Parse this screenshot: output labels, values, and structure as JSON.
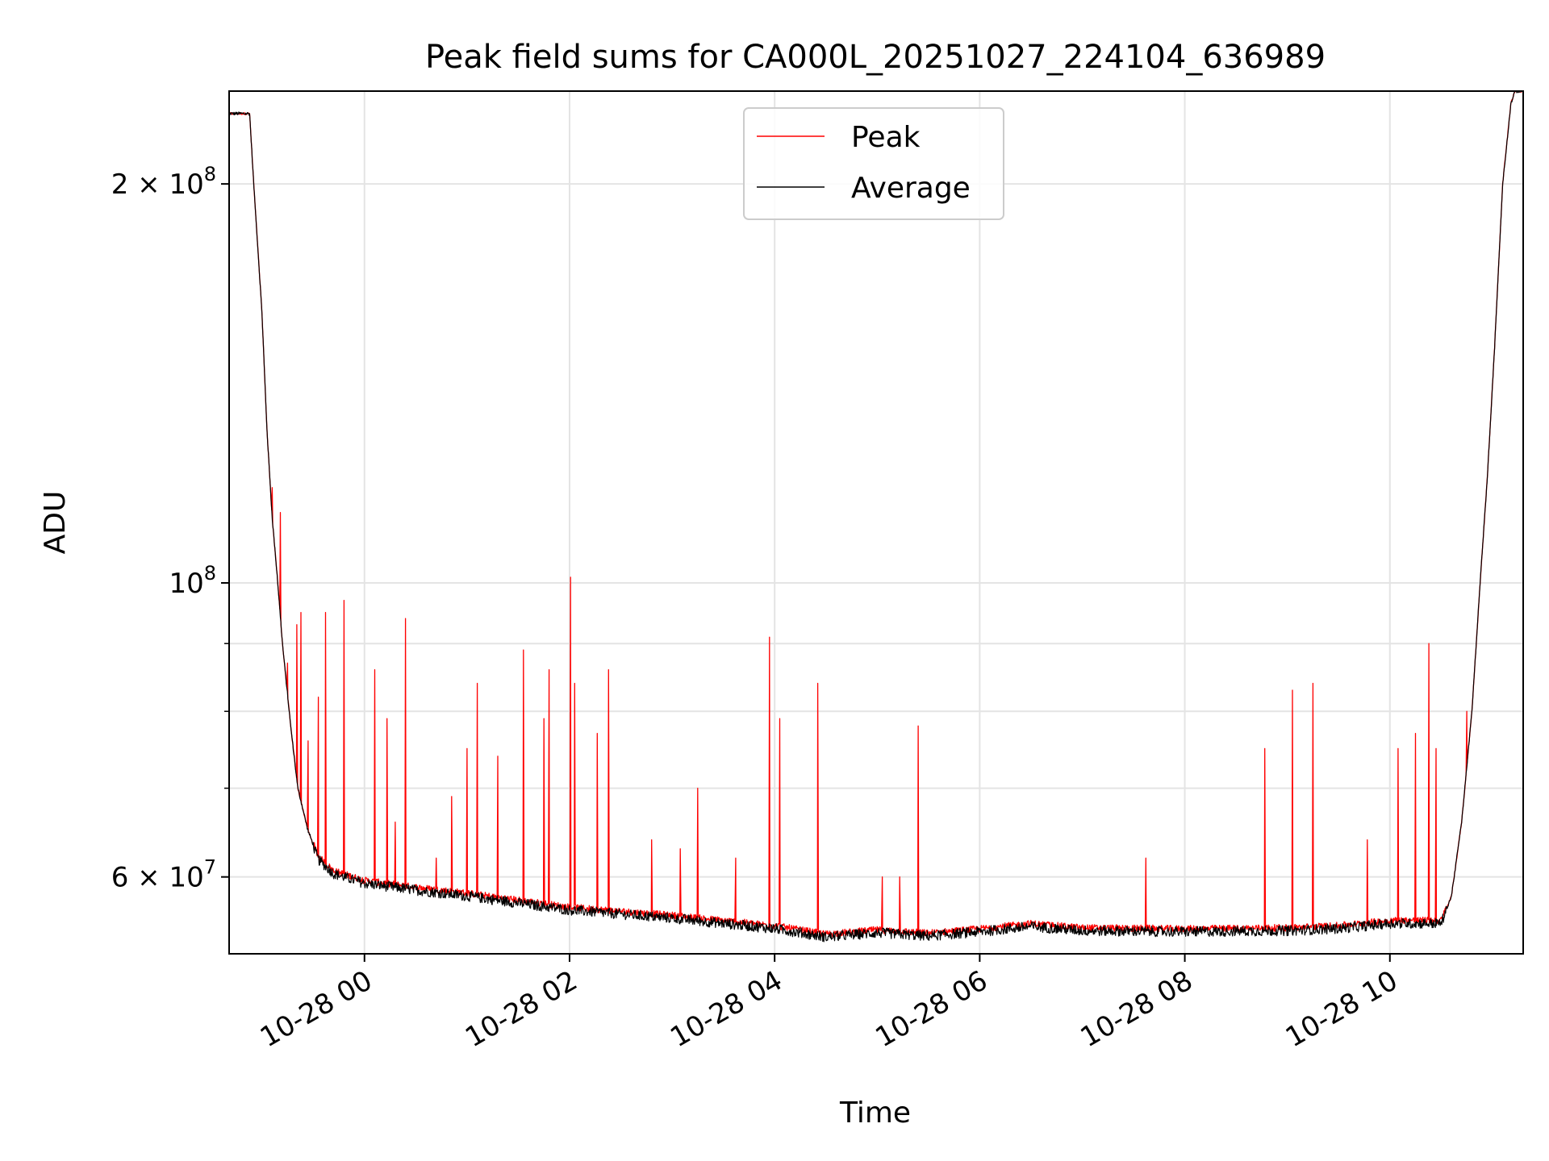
{
  "chart_data": {
    "type": "line",
    "title": "Peak field sums for CA000L_20251027_224104_636989",
    "xlabel": "Time",
    "ylabel": "ADU",
    "x_unit": "hours relative to 10-28 00:00",
    "xlim": [
      -1.32,
      11.3
    ],
    "ylim": [
      52500000,
      235000000
    ],
    "yscale": "log",
    "grid": true,
    "legend_position": "top-center",
    "x_ticks": [
      {
        "value": 0,
        "label": "10-28 00"
      },
      {
        "value": 2,
        "label": "10-28 02"
      },
      {
        "value": 4,
        "label": "10-28 04"
      },
      {
        "value": 6,
        "label": "10-28 06"
      },
      {
        "value": 8,
        "label": "10-28 08"
      },
      {
        "value": 10,
        "label": "10-28 10"
      }
    ],
    "y_major_ticks": [
      {
        "value": 60000000,
        "base": "6 × 10",
        "exp": "7"
      },
      {
        "value": 100000000,
        "base": "10",
        "exp": "8"
      },
      {
        "value": 200000000,
        "base": "2 × 10",
        "exp": "8"
      }
    ],
    "y_minor_ticks": [
      70000000,
      80000000,
      90000000
    ],
    "series": [
      {
        "name": "Peak",
        "color": "#ff0000",
        "spikes": [
          [
            -0.9,
            118000000
          ],
          [
            -0.82,
            113000000
          ],
          [
            -0.75,
            87000000
          ],
          [
            -0.72,
            78000000
          ],
          [
            -0.66,
            93000000
          ],
          [
            -0.62,
            95000000
          ],
          [
            -0.55,
            76000000
          ],
          [
            -0.45,
            82000000
          ],
          [
            -0.38,
            95000000
          ],
          [
            -0.2,
            97000000
          ],
          [
            0.1,
            86000000
          ],
          [
            0.22,
            79000000
          ],
          [
            0.3,
            66000000
          ],
          [
            0.4,
            94000000
          ],
          [
            0.7,
            62000000
          ],
          [
            0.85,
            69000000
          ],
          [
            1.0,
            75000000
          ],
          [
            1.1,
            84000000
          ],
          [
            1.3,
            74000000
          ],
          [
            1.55,
            89000000
          ],
          [
            1.75,
            79000000
          ],
          [
            1.8,
            86000000
          ],
          [
            2.01,
            101000000
          ],
          [
            2.05,
            84000000
          ],
          [
            2.27,
            77000000
          ],
          [
            2.38,
            86000000
          ],
          [
            2.8,
            64000000
          ],
          [
            3.08,
            63000000
          ],
          [
            3.25,
            70000000
          ],
          [
            3.62,
            62000000
          ],
          [
            3.95,
            91000000
          ],
          [
            4.05,
            79000000
          ],
          [
            4.42,
            84000000
          ],
          [
            5.05,
            60000000
          ],
          [
            5.22,
            60000000
          ],
          [
            5.4,
            78000000
          ],
          [
            7.62,
            62000000
          ],
          [
            8.78,
            75000000
          ],
          [
            9.05,
            83000000
          ],
          [
            9.25,
            84000000
          ],
          [
            9.78,
            64000000
          ],
          [
            10.08,
            75000000
          ],
          [
            10.25,
            77000000
          ],
          [
            10.38,
            90000000
          ],
          [
            10.45,
            75000000
          ],
          [
            10.75,
            80000000
          ]
        ]
      },
      {
        "name": "Average",
        "color": "#000000",
        "baseline": [
          [
            -1.32,
            226000000
          ],
          [
            -1.25,
            226000000
          ],
          [
            -1.12,
            226000000
          ],
          [
            -1.08,
            200000000
          ],
          [
            -1.0,
            160000000
          ],
          [
            -0.95,
            130000000
          ],
          [
            -0.9,
            112000000
          ],
          [
            -0.85,
            101000000
          ],
          [
            -0.8,
            90000000
          ],
          [
            -0.72,
            78000000
          ],
          [
            -0.65,
            70000000
          ],
          [
            -0.55,
            65000000
          ],
          [
            -0.45,
            62000000
          ],
          [
            -0.3,
            60500000
          ],
          [
            0.0,
            59500000
          ],
          [
            0.5,
            58800000
          ],
          [
            1.0,
            58200000
          ],
          [
            1.5,
            57500000
          ],
          [
            2.0,
            56800000
          ],
          [
            3.0,
            56000000
          ],
          [
            4.0,
            55000000
          ],
          [
            4.5,
            54200000
          ],
          [
            5.0,
            54600000
          ],
          [
            5.5,
            54300000
          ],
          [
            6.0,
            54700000
          ],
          [
            6.5,
            55200000
          ],
          [
            7.0,
            54800000
          ],
          [
            8.0,
            54700000
          ],
          [
            9.0,
            54800000
          ],
          [
            9.5,
            55000000
          ],
          [
            10.0,
            55500000
          ],
          [
            10.5,
            55500000
          ],
          [
            10.6,
            58000000
          ],
          [
            10.7,
            66000000
          ],
          [
            10.8,
            80000000
          ],
          [
            10.88,
            100000000
          ],
          [
            10.95,
            120000000
          ],
          [
            11.02,
            150000000
          ],
          [
            11.1,
            200000000
          ],
          [
            11.18,
            230000000
          ],
          [
            11.22,
            235000000
          ]
        ]
      }
    ]
  }
}
